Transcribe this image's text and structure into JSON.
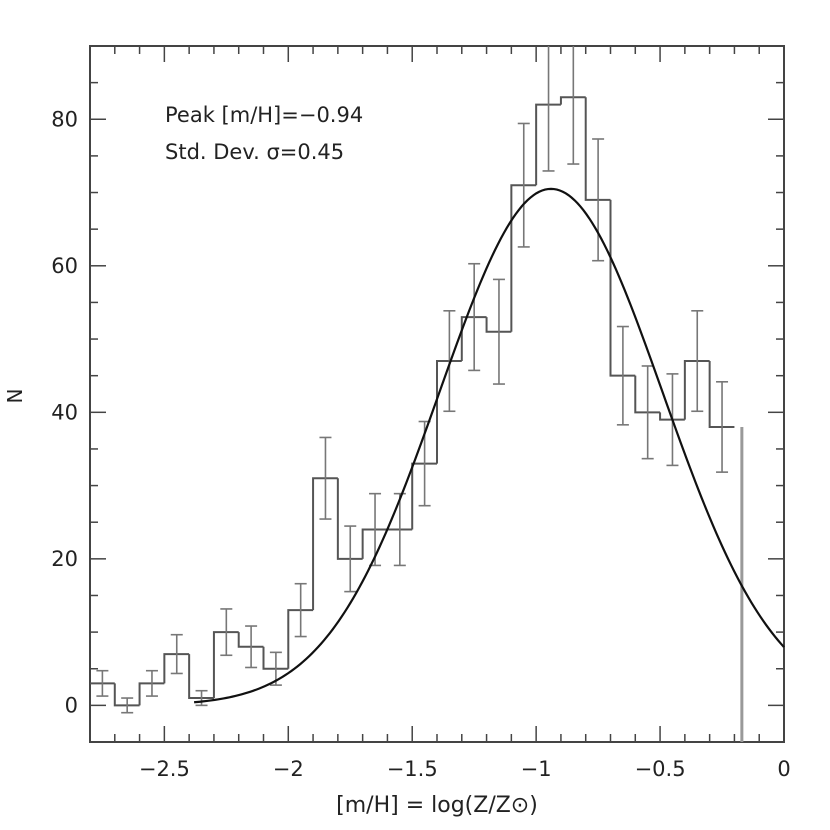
{
  "chart_data": {
    "type": "bar",
    "style": "step-histogram-with-error-bars-and-gaussian-fit",
    "xlabel": "[m/H] = log(Z/Z⊙)",
    "ylabel": "N",
    "xlim": [
      -2.8,
      0
    ],
    "ylim": [
      -5,
      90
    ],
    "x_ticks": [
      -2.5,
      -2,
      -1.5,
      -1,
      -0.5,
      0
    ],
    "x_tick_labels": [
      "−2.5",
      "−2",
      "−1.5",
      "−1",
      "−0.5",
      "0"
    ],
    "y_ticks": [
      0,
      20,
      40,
      60,
      80
    ],
    "y_tick_labels": [
      "0",
      "20",
      "40",
      "60",
      "80"
    ],
    "bin_width": 0.1,
    "bins": [
      {
        "x": -2.75,
        "count": 3
      },
      {
        "x": -2.65,
        "count": 0
      },
      {
        "x": -2.55,
        "count": 3
      },
      {
        "x": -2.45,
        "count": 7
      },
      {
        "x": -2.35,
        "count": 1
      },
      {
        "x": -2.25,
        "count": 10
      },
      {
        "x": -2.15,
        "count": 8
      },
      {
        "x": -2.05,
        "count": 5
      },
      {
        "x": -1.95,
        "count": 13
      },
      {
        "x": -1.85,
        "count": 31
      },
      {
        "x": -1.75,
        "count": 20
      },
      {
        "x": -1.65,
        "count": 24
      },
      {
        "x": -1.55,
        "count": 24
      },
      {
        "x": -1.45,
        "count": 33
      },
      {
        "x": -1.35,
        "count": 47
      },
      {
        "x": -1.25,
        "count": 53
      },
      {
        "x": -1.15,
        "count": 51
      },
      {
        "x": -1.05,
        "count": 71
      },
      {
        "x": -0.95,
        "count": 82
      },
      {
        "x": -0.85,
        "count": 83
      },
      {
        "x": -0.75,
        "count": 69
      },
      {
        "x": -0.65,
        "count": 45
      },
      {
        "x": -0.55,
        "count": 40
      },
      {
        "x": -0.45,
        "count": 39
      },
      {
        "x": -0.35,
        "count": 47
      },
      {
        "x": -0.25,
        "count": 38
      },
      {
        "x": -0.2,
        "count": 0
      }
    ],
    "fit": {
      "type": "gaussian",
      "mean": -0.94,
      "sigma": 0.45,
      "amplitude": 70.5,
      "x_range": [
        -2.38,
        0
      ]
    },
    "annotations": [
      "Peak [m/H]=−0.94",
      "Std. Dev. σ=0.45"
    ],
    "grid": false,
    "legend": "none",
    "colors": {
      "histogram": "#555555",
      "error_bars": "#777777",
      "fit_line": "#111111",
      "axes": "#444444"
    }
  }
}
